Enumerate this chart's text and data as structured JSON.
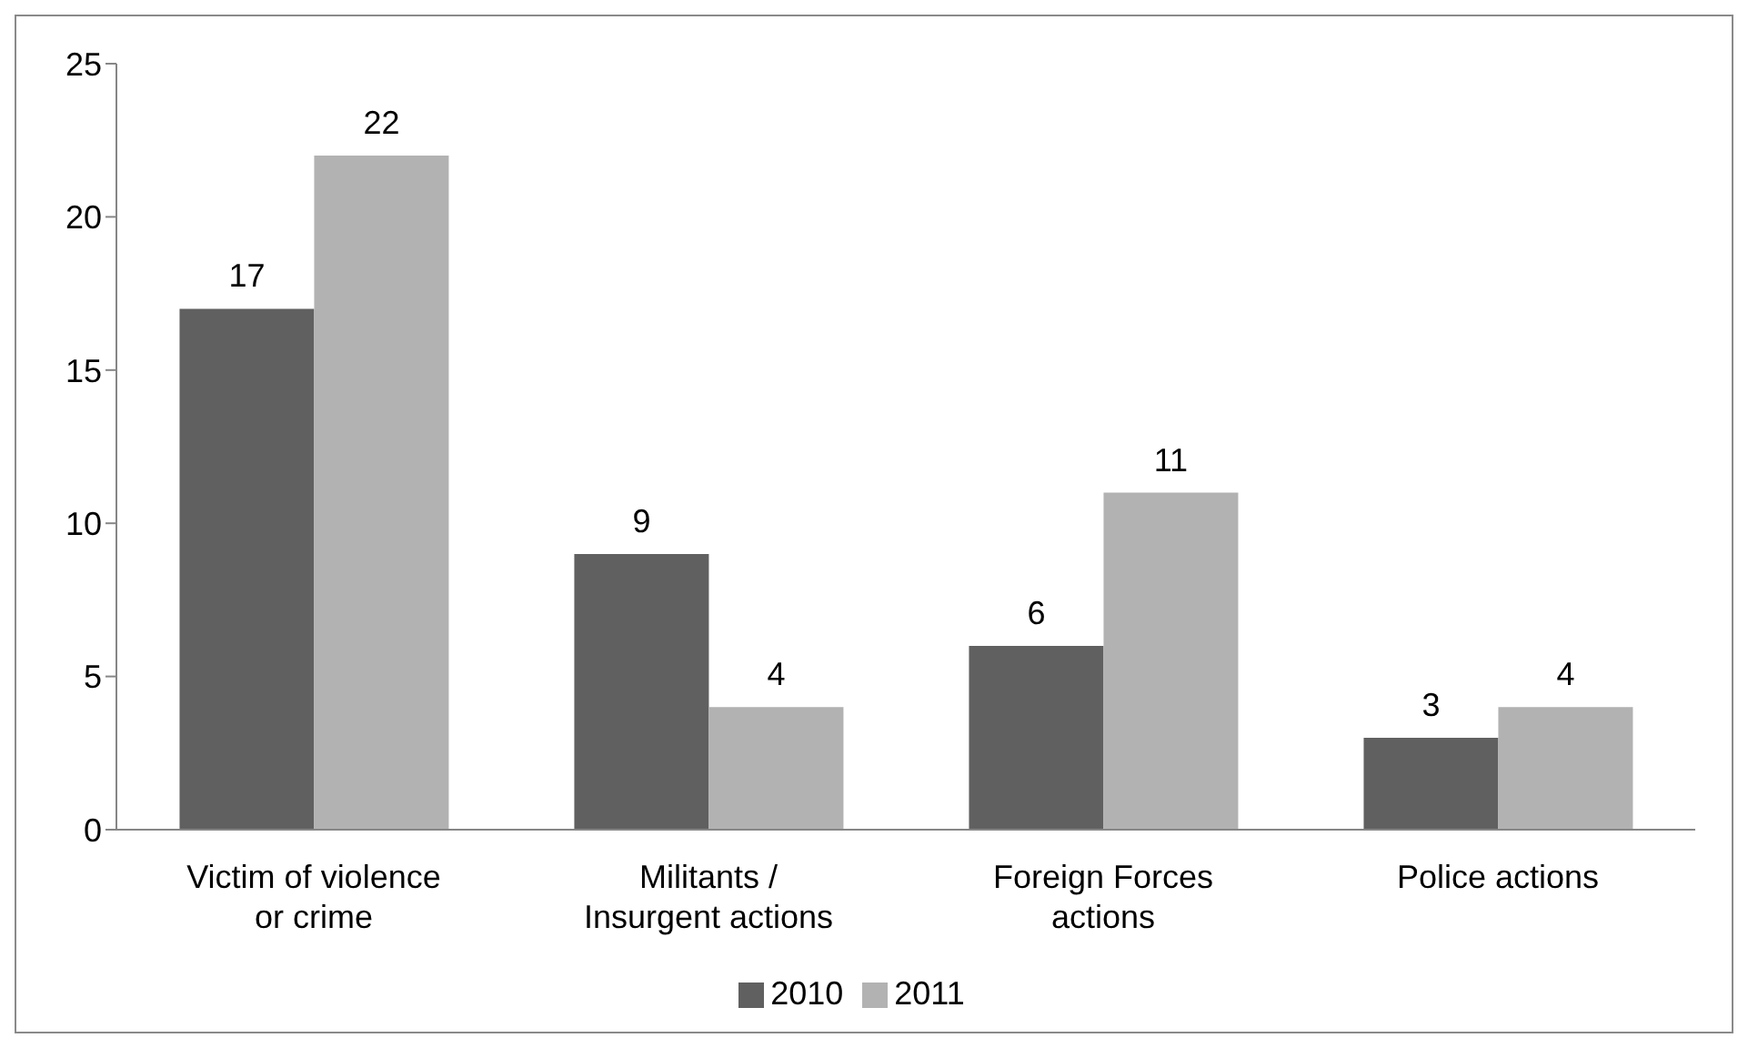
{
  "chart_data": {
    "type": "bar",
    "categories": [
      "Victim of violence or crime",
      "Militants / Insurgent actions",
      "Foreign Forces actions",
      "Police actions"
    ],
    "series": [
      {
        "name": "2010",
        "color": "#606060",
        "values": [
          17,
          9,
          6,
          3
        ]
      },
      {
        "name": "2011",
        "color": "#b2b2b2",
        "values": [
          22,
          4,
          11,
          4
        ]
      }
    ],
    "ylim": [
      0,
      25
    ],
    "yticks": [
      0,
      5,
      10,
      15,
      20,
      25
    ],
    "grid": false,
    "legend": "bottom",
    "data_labels": true
  }
}
